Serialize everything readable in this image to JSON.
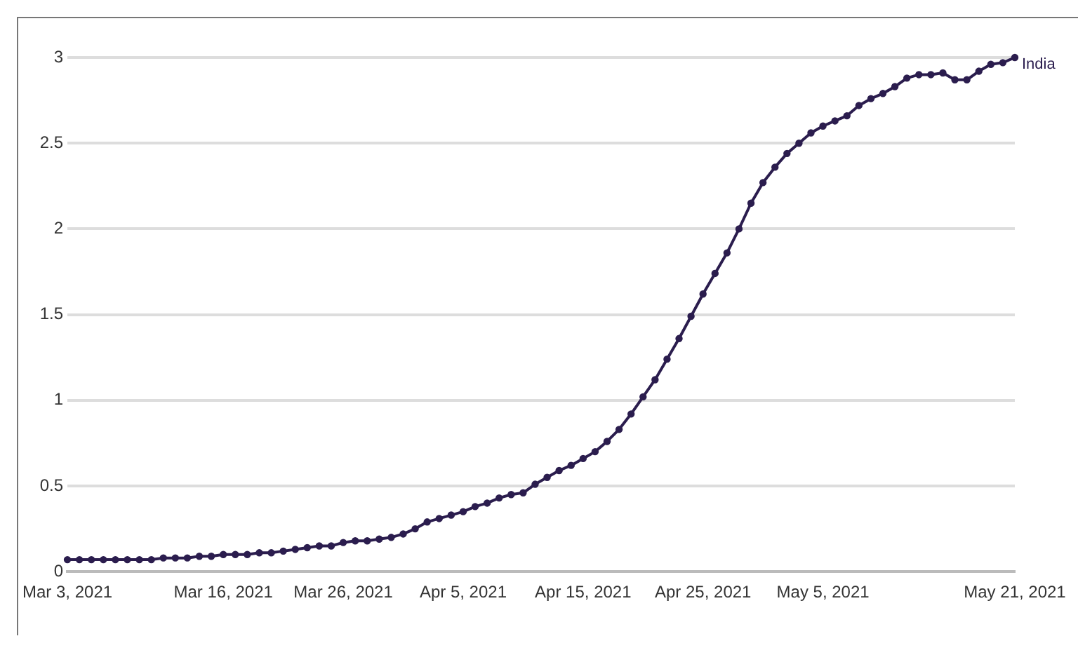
{
  "chart_data": {
    "type": "line",
    "x": [
      "2021-03-03",
      "2021-03-04",
      "2021-03-05",
      "2021-03-06",
      "2021-03-07",
      "2021-03-08",
      "2021-03-09",
      "2021-03-10",
      "2021-03-11",
      "2021-03-12",
      "2021-03-13",
      "2021-03-14",
      "2021-03-15",
      "2021-03-16",
      "2021-03-17",
      "2021-03-18",
      "2021-03-19",
      "2021-03-20",
      "2021-03-21",
      "2021-03-22",
      "2021-03-23",
      "2021-03-24",
      "2021-03-25",
      "2021-03-26",
      "2021-03-27",
      "2021-03-28",
      "2021-03-29",
      "2021-03-30",
      "2021-03-31",
      "2021-04-01",
      "2021-04-02",
      "2021-04-03",
      "2021-04-04",
      "2021-04-05",
      "2021-04-06",
      "2021-04-07",
      "2021-04-08",
      "2021-04-09",
      "2021-04-10",
      "2021-04-11",
      "2021-04-12",
      "2021-04-13",
      "2021-04-14",
      "2021-04-15",
      "2021-04-16",
      "2021-04-17",
      "2021-04-18",
      "2021-04-19",
      "2021-04-20",
      "2021-04-21",
      "2021-04-22",
      "2021-04-23",
      "2021-04-24",
      "2021-04-25",
      "2021-04-26",
      "2021-04-27",
      "2021-04-28",
      "2021-04-29",
      "2021-04-30",
      "2021-05-01",
      "2021-05-02",
      "2021-05-03",
      "2021-05-04",
      "2021-05-05",
      "2021-05-06",
      "2021-05-07",
      "2021-05-08",
      "2021-05-09",
      "2021-05-10",
      "2021-05-11",
      "2021-05-12",
      "2021-05-13",
      "2021-05-14",
      "2021-05-15",
      "2021-05-16",
      "2021-05-17",
      "2021-05-18",
      "2021-05-19",
      "2021-05-20",
      "2021-05-21"
    ],
    "series": [
      {
        "name": "India",
        "color": "#2b1d4e",
        "values": [
          0.07,
          0.07,
          0.07,
          0.07,
          0.07,
          0.07,
          0.07,
          0.07,
          0.08,
          0.08,
          0.08,
          0.09,
          0.09,
          0.1,
          0.1,
          0.1,
          0.11,
          0.11,
          0.12,
          0.13,
          0.14,
          0.15,
          0.15,
          0.17,
          0.18,
          0.18,
          0.19,
          0.2,
          0.22,
          0.25,
          0.29,
          0.31,
          0.33,
          0.35,
          0.38,
          0.4,
          0.43,
          0.45,
          0.46,
          0.51,
          0.55,
          0.59,
          0.62,
          0.66,
          0.7,
          0.76,
          0.83,
          0.92,
          1.02,
          1.12,
          1.24,
          1.36,
          1.49,
          1.62,
          1.74,
          1.86,
          2.0,
          2.15,
          2.27,
          2.36,
          2.44,
          2.5,
          2.56,
          2.6,
          2.63,
          2.66,
          2.72,
          2.76,
          2.79,
          2.83,
          2.88,
          2.9,
          2.9,
          2.91,
          2.87,
          2.87,
          2.92,
          2.96,
          2.97,
          3.0
        ]
      }
    ],
    "xlim": [
      "2021-03-03",
      "2021-05-21"
    ],
    "xticks": [
      {
        "value": "2021-03-03",
        "label": "Mar 3, 2021"
      },
      {
        "value": "2021-03-16",
        "label": "Mar 16, 2021"
      },
      {
        "value": "2021-03-26",
        "label": "Mar 26, 2021"
      },
      {
        "value": "2021-04-05",
        "label": "Apr 5, 2021"
      },
      {
        "value": "2021-04-15",
        "label": "Apr 15, 2021"
      },
      {
        "value": "2021-04-25",
        "label": "Apr 25, 2021"
      },
      {
        "value": "2021-05-05",
        "label": "May 5, 2021"
      },
      {
        "value": "2021-05-21",
        "label": "May 21, 2021"
      }
    ],
    "ylim": [
      0,
      3
    ],
    "yticks": [
      0,
      0.5,
      1,
      1.5,
      2,
      2.5,
      3
    ],
    "grid": "y",
    "legend": false,
    "marker": "circle",
    "line_style": "solid"
  }
}
